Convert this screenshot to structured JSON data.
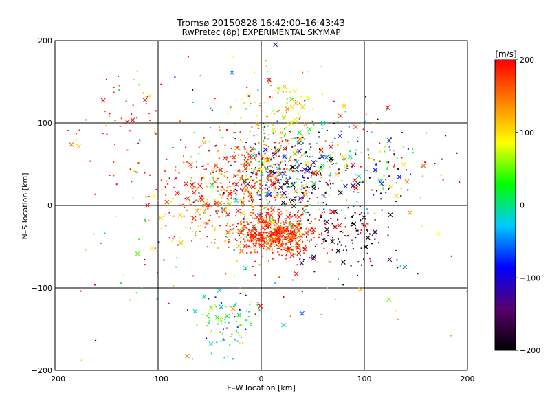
{
  "chart_data": {
    "type": "scatter",
    "title": "Tromsø 20150828 16:42:00–16:43:43",
    "subtitle": "RwPretec (8p) EXPERIMENTAL SKYMAP",
    "xlabel": "E–W location [km]",
    "ylabel": "N–S location [km]",
    "xlim": [
      -200,
      200
    ],
    "ylim": [
      -200,
      200
    ],
    "xticks": [
      -200,
      -100,
      0,
      100,
      200
    ],
    "yticks": [
      -200,
      -100,
      0,
      100,
      200
    ],
    "xtick_labels": [
      "−200",
      "−100",
      "0",
      "100",
      "200"
    ],
    "ytick_labels": [
      "−200",
      "−100",
      "0",
      "100",
      "200"
    ],
    "grid": true,
    "colorbar": {
      "label": "[m/s]",
      "range": [
        -200,
        200
      ],
      "ticks": [
        200,
        100,
        0,
        -100,
        -200
      ],
      "tick_labels": [
        "200",
        "100",
        "0",
        "−100",
        "−200"
      ],
      "colors": [
        "#000000",
        "#5a006e",
        "#0000ff",
        "#00c8ff",
        "#00ff00",
        "#ffff00",
        "#ff8000",
        "#ff0000"
      ]
    },
    "markers": [
      "dot",
      "x"
    ],
    "clusters": [
      {
        "x": 15,
        "y": -35,
        "sx": 20,
        "sy": 12,
        "v": 180,
        "vs": 30,
        "n": 520
      },
      {
        "x": 25,
        "y": 40,
        "sx": 25,
        "sy": 25,
        "v": -60,
        "vs": 120,
        "n": 320
      },
      {
        "x": -15,
        "y": 30,
        "sx": 30,
        "sy": 30,
        "v": 170,
        "vs": 50,
        "n": 360
      },
      {
        "x": -60,
        "y": 0,
        "sx": 20,
        "sy": 25,
        "v": 160,
        "vs": 60,
        "n": 120
      },
      {
        "x": 80,
        "y": -30,
        "sx": 25,
        "sy": 25,
        "v": -190,
        "vs": 20,
        "n": 110
      },
      {
        "x": 100,
        "y": 50,
        "sx": 35,
        "sy": 25,
        "v": 0,
        "vs": 150,
        "n": 170
      },
      {
        "x": -35,
        "y": -140,
        "sx": 15,
        "sy": 20,
        "v": 20,
        "vs": 60,
        "n": 90
      },
      {
        "x": 15,
        "y": 110,
        "sx": 20,
        "sy": 20,
        "v": 90,
        "vs": 50,
        "n": 90
      },
      {
        "x": -130,
        "y": 90,
        "sx": 30,
        "sy": 40,
        "v": 190,
        "vs": 40,
        "n": 60
      },
      {
        "x": 0,
        "y": 0,
        "sx": 90,
        "sy": 80,
        "v": 80,
        "vs": 150,
        "n": 300
      }
    ]
  }
}
